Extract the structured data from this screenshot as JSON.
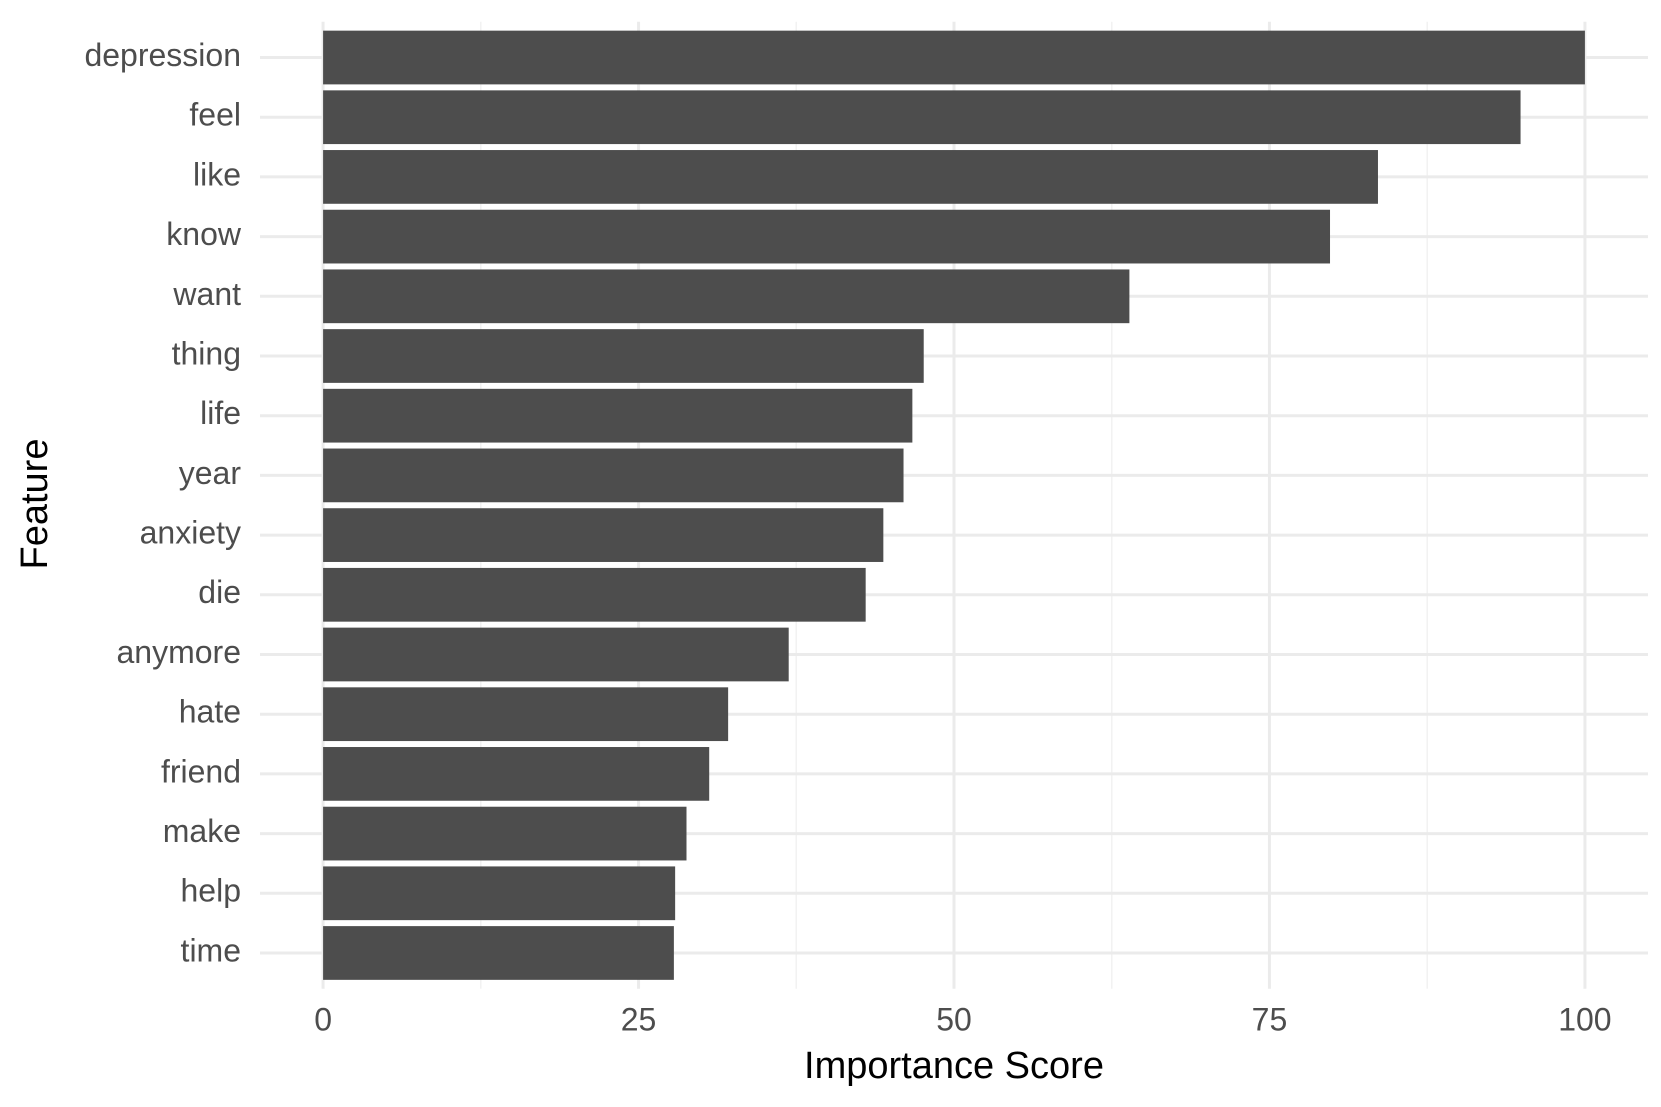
{
  "chart_data": {
    "type": "barh",
    "x_label": "Importance Score",
    "y_label": "Feature",
    "categories": [
      "depression",
      "feel",
      "like",
      "know",
      "want",
      "thing",
      "life",
      "year",
      "anxiety",
      "die",
      "anymore",
      "hate",
      "friend",
      "make",
      "help",
      "time"
    ],
    "values": [
      100,
      94.9,
      83.6,
      79.8,
      63.9,
      47.6,
      46.7,
      46.0,
      44.4,
      43.0,
      36.9,
      32.1,
      30.6,
      28.8,
      27.9,
      27.8
    ],
    "color": "#4d4d4d",
    "xlim": [
      -5,
      105
    ],
    "xticks": [
      0,
      25,
      50,
      75,
      100
    ],
    "grid": true,
    "minor_grid": true
  }
}
